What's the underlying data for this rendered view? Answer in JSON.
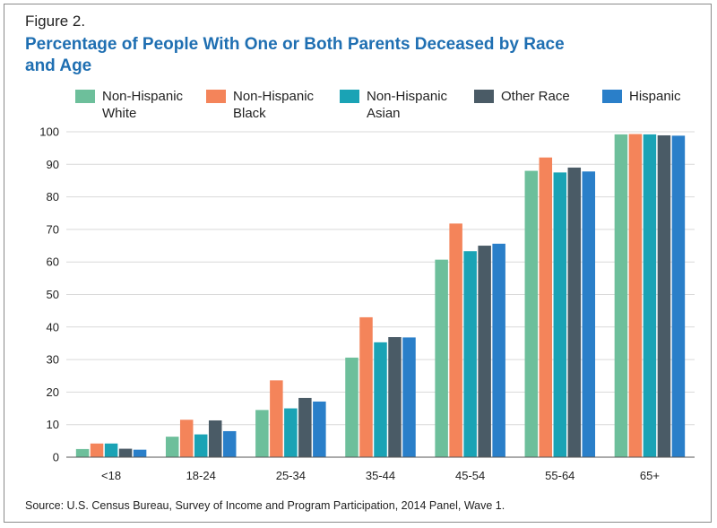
{
  "figure_label": "Figure 2.",
  "source": "Source: U.S. Census Bureau, Survey of Income and Program Participation, 2014 Panel, Wave 1.",
  "chart_data": {
    "type": "bar",
    "title": "Percentage of People With One or Both Parents Deceased by Race and Age",
    "xlabel": "",
    "ylabel": "",
    "ylim": [
      0,
      100
    ],
    "yticks": [
      0,
      10,
      20,
      30,
      40,
      50,
      60,
      70,
      80,
      90,
      100
    ],
    "grid": true,
    "legend_position": "top",
    "categories": [
      "<18",
      "18-24",
      "25-34",
      "35-44",
      "45-54",
      "55-64",
      "65+"
    ],
    "series": [
      {
        "name": "Non-Hispanic\nWhite",
        "color": "#6dbf9b",
        "values": [
          2.5,
          6.3,
          14.5,
          30.6,
          60.7,
          88.0,
          99.2
        ]
      },
      {
        "name": "Non-Hispanic\nBlack",
        "color": "#f4845a",
        "values": [
          4.2,
          11.5,
          23.6,
          43.0,
          71.8,
          92.1,
          99.3
        ]
      },
      {
        "name": "Non-Hispanic\n Asian",
        "color": "#1aa3b5",
        "values": [
          4.2,
          7.0,
          15.0,
          35.3,
          63.3,
          87.5,
          99.2
        ]
      },
      {
        "name": "Other Race",
        "color": "#4a5b66",
        "values": [
          2.6,
          11.3,
          18.2,
          36.9,
          65.0,
          89.0,
          98.9
        ]
      },
      {
        "name": "Hispanic",
        "color": "#2a7fc9",
        "values": [
          2.3,
          8.0,
          17.1,
          36.8,
          65.6,
          87.8,
          98.8
        ]
      }
    ]
  }
}
